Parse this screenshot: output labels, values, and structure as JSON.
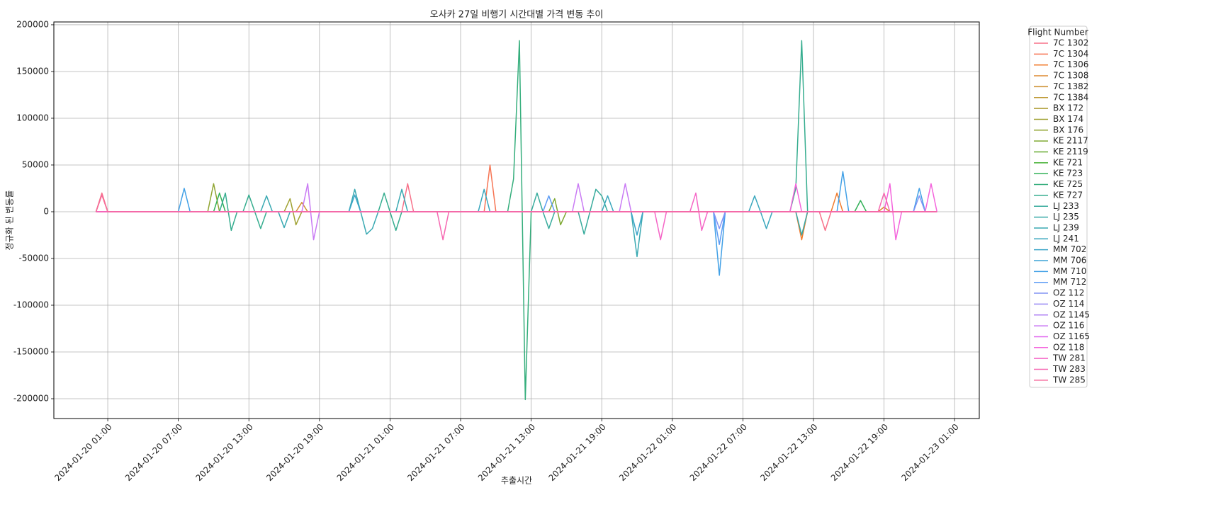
{
  "chart_data": {
    "type": "line",
    "title": "오사카 27일 비행기 시간대별 가격 변동 추이",
    "x_label": "추출시간",
    "y_label": "정규화 된 변동률",
    "legend_title": "Flight Number",
    "legend_position": "outside-right",
    "grid": true,
    "xlim": [
      "2024-01-19 20:25",
      "2024-01-23 03:06"
    ],
    "ylim": [
      -221200,
      203000
    ],
    "xticks": [
      "2024-01-20 01:00",
      "2024-01-20 07:00",
      "2024-01-20 13:00",
      "2024-01-20 19:00",
      "2024-01-21 01:00",
      "2024-01-21 07:00",
      "2024-01-21 13:00",
      "2024-01-21 19:00",
      "2024-01-22 01:00",
      "2024-01-22 07:00",
      "2024-01-22 13:00",
      "2024-01-22 19:00",
      "2024-01-23 01:00"
    ],
    "yticks": [
      -200000,
      -150000,
      -100000,
      -50000,
      0,
      50000,
      100000,
      150000,
      200000
    ],
    "series": [
      {
        "name": "7C 1302",
        "color": "#f77189",
        "x": [
          "2024-01-20 00:00",
          "2024-01-20 00:30",
          "2024-01-20 01:00",
          "2024-01-21 02:00",
          "2024-01-21 02:30",
          "2024-01-21 03:00",
          "2024-01-22 13:30",
          "2024-01-22 14:00",
          "2024-01-22 14:30",
          "2024-01-22 23:30"
        ],
        "values": [
          0,
          20000,
          0,
          0,
          30000,
          0,
          0,
          -20000,
          0,
          0
        ]
      },
      {
        "name": "7C 1304",
        "color": "#f67554",
        "x": [
          "2024-01-20 00:00",
          "2024-01-20 00:30",
          "2024-01-20 01:00",
          "2024-01-21 09:00",
          "2024-01-21 09:30",
          "2024-01-21 10:00",
          "2024-01-22 23:30"
        ],
        "values": [
          0,
          18000,
          0,
          0,
          50000,
          0,
          0
        ]
      },
      {
        "name": "7C 1306",
        "color": "#f27b2c",
        "x": [
          "2024-01-20 00:00",
          "2024-01-22 11:30",
          "2024-01-22 12:00",
          "2024-01-22 12:30",
          "2024-01-22 14:30",
          "2024-01-22 15:00",
          "2024-01-22 15:30",
          "2024-01-22 23:30"
        ],
        "values": [
          0,
          0,
          -30000,
          0,
          0,
          20000,
          0,
          0
        ]
      },
      {
        "name": "7C 1308",
        "color": "#de8a31",
        "x": [
          "2024-01-20 00:00",
          "2024-01-22 18:30",
          "2024-01-22 19:00",
          "2024-01-22 19:30",
          "2024-01-22 23:30"
        ],
        "values": [
          0,
          0,
          5000,
          0,
          0
        ]
      },
      {
        "name": "7C 1382",
        "color": "#cd9132",
        "x": [
          "2024-01-20 00:00",
          "2024-01-20 17:00",
          "2024-01-20 17:30",
          "2024-01-20 18:00",
          "2024-01-22 23:30"
        ],
        "values": [
          0,
          0,
          10000,
          0,
          0
        ]
      },
      {
        "name": "7C 1384",
        "color": "#bd9832",
        "x": [
          "2024-01-20 00:00",
          "2024-01-22 23:30"
        ],
        "values": [
          0,
          0
        ]
      },
      {
        "name": "BX 172",
        "color": "#ad9c31",
        "x": [
          "2024-01-20 00:00",
          "2024-01-22 23:30"
        ],
        "values": [
          0,
          0
        ]
      },
      {
        "name": "BX 174",
        "color": "#9fa131",
        "x": [
          "2024-01-20 00:00",
          "2024-01-20 16:00",
          "2024-01-20 16:30",
          "2024-01-20 17:00",
          "2024-01-20 17:30",
          "2024-01-22 23:30"
        ],
        "values": [
          0,
          0,
          14000,
          -14000,
          0,
          0
        ]
      },
      {
        "name": "BX 176",
        "color": "#90a532",
        "x": [
          "2024-01-20 00:00",
          "2024-01-20 09:30",
          "2024-01-20 10:00",
          "2024-01-20 10:30",
          "2024-01-22 23:30"
        ],
        "values": [
          0,
          0,
          30000,
          0,
          0
        ]
      },
      {
        "name": "KE 2117",
        "color": "#7ea831",
        "x": [
          "2024-01-20 00:00",
          "2024-01-21 14:30",
          "2024-01-21 15:00",
          "2024-01-21 15:30",
          "2024-01-21 16:00",
          "2024-01-22 23:30"
        ],
        "values": [
          0,
          0,
          14000,
          -14000,
          0,
          0
        ]
      },
      {
        "name": "KE 2119",
        "color": "#68ab32",
        "x": [
          "2024-01-20 00:00",
          "2024-01-22 23:30"
        ],
        "values": [
          0,
          0
        ]
      },
      {
        "name": "KE 721",
        "color": "#43b032",
        "x": [
          "2024-01-20 00:00",
          "2024-01-22 23:30"
        ],
        "values": [
          0,
          0
        ]
      },
      {
        "name": "KE 723",
        "color": "#33b158",
        "x": [
          "2024-01-20 00:00",
          "2024-01-20 10:00",
          "2024-01-20 10:30",
          "2024-01-20 11:00",
          "2024-01-22 16:30",
          "2024-01-22 17:00",
          "2024-01-22 17:30",
          "2024-01-22 23:30"
        ],
        "values": [
          0,
          0,
          20000,
          0,
          0,
          12000,
          0,
          0
        ]
      },
      {
        "name": "KE 725",
        "color": "#35ae7c",
        "x": [
          "2024-01-20 00:00",
          "2024-01-21 11:00",
          "2024-01-21 11:30",
          "2024-01-21 12:00",
          "2024-01-21 12:30",
          "2024-01-21 13:00",
          "2024-01-22 23:30"
        ],
        "values": [
          0,
          0,
          35000,
          183000,
          -201000,
          0,
          0
        ]
      },
      {
        "name": "KE 727",
        "color": "#36ad8f",
        "x": [
          "2024-01-20 00:00",
          "2024-01-20 10:30",
          "2024-01-20 11:00",
          "2024-01-20 11:30",
          "2024-01-20 12:00",
          "2024-01-20 12:30",
          "2024-01-20 13:00",
          "2024-01-20 13:30",
          "2024-01-20 14:00",
          "2024-01-20 14:30",
          "2024-01-21 00:00",
          "2024-01-21 00:30",
          "2024-01-21 01:00",
          "2024-01-21 01:30",
          "2024-01-21 02:00",
          "2024-01-22 11:00",
          "2024-01-22 11:30",
          "2024-01-22 12:00",
          "2024-01-22 12:30",
          "2024-01-22 23:30"
        ],
        "values": [
          0,
          0,
          20000,
          -20000,
          0,
          0,
          18000,
          0,
          -18000,
          0,
          0,
          20000,
          0,
          -20000,
          0,
          0,
          25000,
          183000,
          0,
          0
        ]
      },
      {
        "name": "LJ 233",
        "color": "#37ab9c",
        "x": [
          "2024-01-20 00:00",
          "2024-01-21 13:00",
          "2024-01-21 13:30",
          "2024-01-21 14:00",
          "2024-01-21 14:30",
          "2024-01-21 15:00",
          "2024-01-21 17:00",
          "2024-01-21 17:30",
          "2024-01-21 18:00",
          "2024-01-21 18:30",
          "2024-01-21 19:00",
          "2024-01-21 19:30",
          "2024-01-22 23:30"
        ],
        "values": [
          0,
          0,
          20000,
          0,
          -18000,
          0,
          0,
          -24000,
          0,
          24000,
          17000,
          0,
          0
        ]
      },
      {
        "name": "LJ 235",
        "color": "#38aaa7",
        "x": [
          "2024-01-20 00:00",
          "2024-01-22 11:30",
          "2024-01-22 12:00",
          "2024-01-22 12:30",
          "2024-01-22 23:30"
        ],
        "values": [
          0,
          0,
          -25000,
          0,
          0
        ]
      },
      {
        "name": "LJ 239",
        "color": "#39a9b2",
        "x": [
          "2024-01-20 00:00",
          "2024-01-20 14:00",
          "2024-01-20 14:30",
          "2024-01-20 15:00",
          "2024-01-20 15:30",
          "2024-01-20 16:00",
          "2024-01-20 16:30",
          "2024-01-20 21:30",
          "2024-01-20 22:00",
          "2024-01-20 22:30",
          "2024-01-20 23:00",
          "2024-01-20 23:30",
          "2024-01-21 00:00",
          "2024-01-21 01:30",
          "2024-01-21 02:00",
          "2024-01-21 02:30",
          "2024-01-21 21:30",
          "2024-01-21 22:00",
          "2024-01-21 22:30",
          "2024-01-22 23:30"
        ],
        "values": [
          0,
          0,
          17000,
          0,
          0,
          -17000,
          0,
          0,
          24000,
          0,
          -24000,
          -18000,
          0,
          0,
          24000,
          0,
          0,
          -48000,
          0,
          0
        ]
      },
      {
        "name": "LJ 241",
        "color": "#3aa7bd",
        "x": [
          "2024-01-20 00:00",
          "2024-01-21 08:30",
          "2024-01-21 09:00",
          "2024-01-21 09:30",
          "2024-01-21 19:00",
          "2024-01-21 19:30",
          "2024-01-21 20:00",
          "2024-01-22 07:30",
          "2024-01-22 08:00",
          "2024-01-22 08:30",
          "2024-01-22 09:00",
          "2024-01-22 09:30",
          "2024-01-22 23:30"
        ],
        "values": [
          0,
          0,
          24000,
          0,
          0,
          17000,
          0,
          0,
          17000,
          0,
          -18000,
          0,
          0
        ]
      },
      {
        "name": "MM 702",
        "color": "#3ba5c8",
        "x": [
          "2024-01-20 00:00",
          "2024-01-20 21:30",
          "2024-01-20 22:00",
          "2024-01-20 22:30",
          "2024-01-21 21:30",
          "2024-01-21 22:00",
          "2024-01-21 22:30",
          "2024-01-22 23:30"
        ],
        "values": [
          0,
          0,
          18000,
          0,
          0,
          -25000,
          0,
          0
        ]
      },
      {
        "name": "MM 706",
        "color": "#3da3d6",
        "x": [
          "2024-01-20 00:00",
          "2024-01-22 23:30"
        ],
        "values": [
          0,
          0
        ]
      },
      {
        "name": "MM 710",
        "color": "#41a0e6",
        "x": [
          "2024-01-20 00:00",
          "2024-01-20 07:00",
          "2024-01-20 07:30",
          "2024-01-20 08:00",
          "2024-01-22 04:30",
          "2024-01-22 05:00",
          "2024-01-22 05:30",
          "2024-01-22 15:00",
          "2024-01-22 15:30",
          "2024-01-22 16:00",
          "2024-01-22 21:30",
          "2024-01-22 22:00",
          "2024-01-22 22:30",
          "2024-01-22 23:30"
        ],
        "values": [
          0,
          0,
          25000,
          0,
          0,
          -68000,
          0,
          0,
          43000,
          0,
          0,
          25000,
          0,
          0
        ]
      },
      {
        "name": "MM 712",
        "color": "#5b9bf4",
        "x": [
          "2024-01-20 00:00",
          "2024-01-21 14:00",
          "2024-01-21 14:30",
          "2024-01-21 15:00",
          "2024-01-22 04:30",
          "2024-01-22 05:00",
          "2024-01-22 05:30",
          "2024-01-22 23:30"
        ],
        "values": [
          0,
          0,
          17000,
          0,
          0,
          -35000,
          0,
          0
        ]
      },
      {
        "name": "OZ 112",
        "color": "#8293f4",
        "x": [
          "2024-01-20 00:00",
          "2024-01-22 04:30",
          "2024-01-22 05:00",
          "2024-01-22 05:30",
          "2024-01-22 21:30",
          "2024-01-22 22:00",
          "2024-01-22 22:30",
          "2024-01-22 23:30"
        ],
        "values": [
          0,
          0,
          -18000,
          0,
          0,
          17000,
          0,
          0
        ]
      },
      {
        "name": "OZ 114",
        "color": "#9a8bf4",
        "x": [
          "2024-01-20 00:00",
          "2024-01-22 23:30"
        ],
        "values": [
          0,
          0
        ]
      },
      {
        "name": "OZ 1145",
        "color": "#b083f4",
        "x": [
          "2024-01-20 00:00",
          "2024-01-22 23:30"
        ],
        "values": [
          0,
          0
        ]
      },
      {
        "name": "OZ 116",
        "color": "#c97af4",
        "x": [
          "2024-01-20 00:00",
          "2024-01-20 17:30",
          "2024-01-20 18:00",
          "2024-01-20 18:30",
          "2024-01-20 19:00",
          "2024-01-21 16:30",
          "2024-01-21 17:00",
          "2024-01-21 17:30",
          "2024-01-21 20:30",
          "2024-01-21 21:00",
          "2024-01-21 21:30",
          "2024-01-22 23:30"
        ],
        "values": [
          0,
          0,
          30000,
          -30000,
          0,
          0,
          30000,
          0,
          0,
          30000,
          0,
          0
        ]
      },
      {
        "name": "OZ 1165",
        "color": "#e067ef",
        "x": [
          "2024-01-20 00:00",
          "2024-01-22 23:30"
        ],
        "values": [
          0,
          0
        ]
      },
      {
        "name": "OZ 118",
        "color": "#f464dc",
        "x": [
          "2024-01-20 00:00",
          "2024-01-22 11:00",
          "2024-01-22 11:30",
          "2024-01-22 12:00",
          "2024-01-22 19:00",
          "2024-01-22 19:30",
          "2024-01-22 20:00",
          "2024-01-22 20:30",
          "2024-01-22 22:30",
          "2024-01-22 23:00",
          "2024-01-22 23:30"
        ],
        "values": [
          0,
          0,
          30000,
          0,
          0,
          30000,
          -30000,
          0,
          0,
          30000,
          0
        ]
      },
      {
        "name": "TW 281",
        "color": "#f565c6",
        "x": [
          "2024-01-20 00:00",
          "2024-01-21 23:30",
          "2024-01-22 00:00",
          "2024-01-22 00:30",
          "2024-01-22 02:30",
          "2024-01-22 03:00",
          "2024-01-22 03:30",
          "2024-01-22 04:00",
          "2024-01-22 23:30"
        ],
        "values": [
          0,
          0,
          -30000,
          0,
          0,
          20000,
          -20000,
          0,
          0
        ]
      },
      {
        "name": "TW 283",
        "color": "#f667b1",
        "x": [
          "2024-01-20 00:00",
          "2024-01-21 05:00",
          "2024-01-21 05:30",
          "2024-01-21 06:00",
          "2024-01-22 18:30",
          "2024-01-22 19:00",
          "2024-01-22 19:30",
          "2024-01-22 23:30"
        ],
        "values": [
          0,
          0,
          -30000,
          0,
          0,
          20000,
          0,
          0
        ]
      },
      {
        "name": "TW 285",
        "color": "#f66c9e",
        "x": [
          "2024-01-20 00:00",
          "2024-01-20 00:30",
          "2024-01-20 01:00",
          "2024-01-22 23:30"
        ],
        "values": [
          0,
          18000,
          0,
          0
        ]
      }
    ]
  }
}
